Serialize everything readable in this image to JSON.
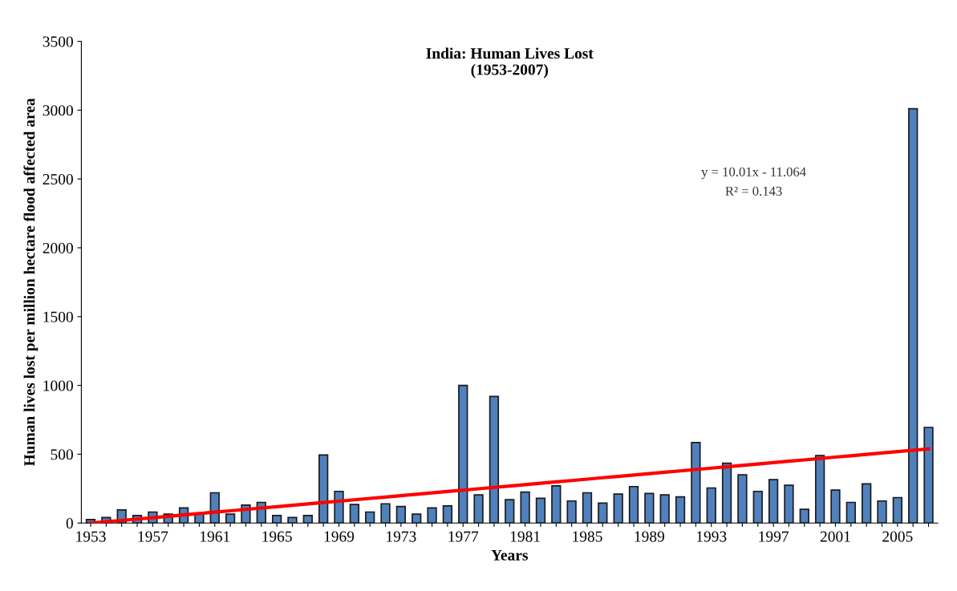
{
  "chart_data": {
    "type": "bar",
    "title": "India: Human Lives Lost\n(1953-2007)",
    "xlabel": "Years",
    "ylabel": "Human lives lost per million hectare flood affected area",
    "categories": [
      "1953",
      null,
      null,
      null,
      "1957",
      null,
      null,
      null,
      "1961",
      null,
      null,
      null,
      "1965",
      null,
      null,
      null,
      "1969",
      null,
      null,
      null,
      "1973",
      null,
      null,
      null,
      "1977",
      null,
      null,
      null,
      "1981",
      null,
      null,
      null,
      "1985",
      null,
      null,
      null,
      "1989",
      null,
      null,
      null,
      "1993",
      null,
      null,
      null,
      "1997",
      null,
      null,
      null,
      "2001",
      null,
      null,
      null,
      "2005",
      null,
      null
    ],
    "series": [
      {
        "color": "#4f81bd",
        "values": [
          25,
          40,
          95,
          55,
          80,
          65,
          110,
          65,
          220,
          65,
          130,
          150,
          55,
          40,
          55,
          495,
          230,
          135,
          80,
          140,
          120,
          65,
          110,
          125,
          1000,
          205,
          920,
          170,
          225,
          180,
          270,
          160,
          220,
          145,
          210,
          265,
          215,
          205,
          190,
          585,
          255,
          435,
          350,
          230,
          315,
          275,
          100,
          490,
          240,
          150,
          285,
          160,
          185,
          3010,
          695
        ]
      },
      {
        "type": "line",
        "color": "#ff0000",
        "values": [
          0,
          9,
          19,
          29,
          39,
          49,
          59,
          69,
          79,
          89,
          99,
          109,
          119,
          129,
          139,
          149,
          159,
          169,
          179,
          189,
          199,
          209,
          219,
          229,
          239,
          249,
          259,
          269,
          279,
          289,
          299,
          309,
          319,
          329,
          339,
          349,
          359,
          369,
          379,
          389,
          399,
          409,
          419,
          429,
          439,
          449,
          459,
          469,
          479,
          489,
          499,
          509,
          519,
          529,
          539
        ]
      }
    ],
    "annotations": [
      "y = 10.01x - 11.064",
      "R² = 0.143"
    ],
    "ylim": [
      0,
      3500
    ],
    "yticks": [
      0,
      500,
      1000,
      1500,
      2000,
      2500,
      3000,
      3500
    ],
    "grid": false,
    "legend": false
  }
}
